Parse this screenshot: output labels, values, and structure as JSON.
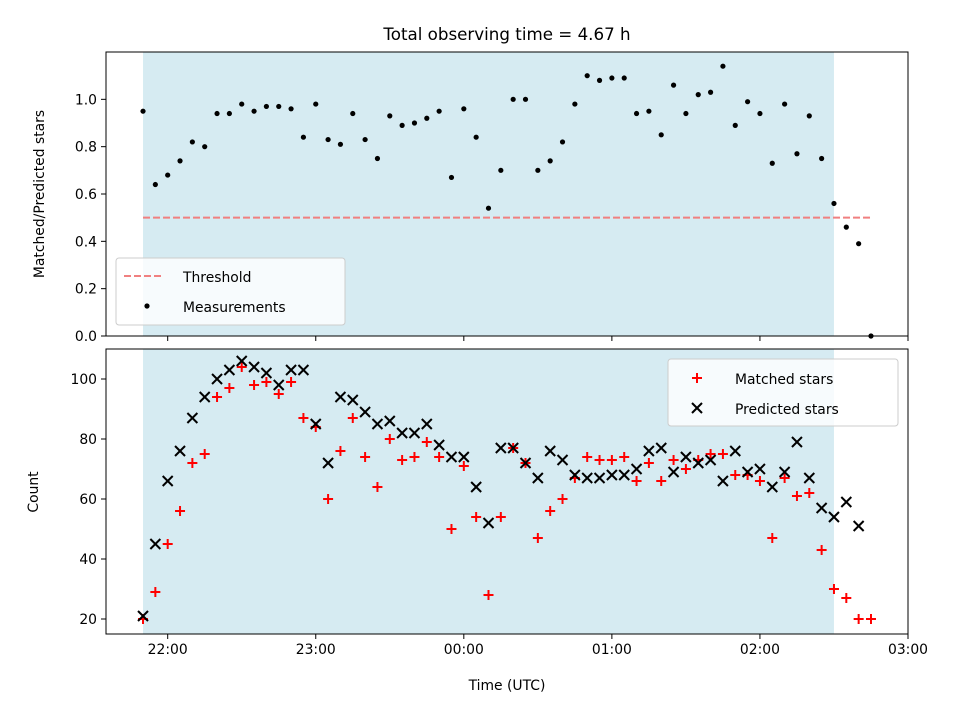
{
  "colors": {
    "span": "#add8e6",
    "threshold": "#f08080",
    "measurement": "#000000",
    "matched": "#ff0000",
    "predicted": "#000000"
  },
  "chart_data": [
    {
      "type": "scatter",
      "title": "Total observing time = 4.67 h",
      "xlabel": "",
      "ylabel": "Matched/Predicted stars",
      "xlim": [
        "21:35",
        "03:00"
      ],
      "ylim": [
        0,
        1.2
      ],
      "xticks": [
        "22:00",
        "23:00",
        "00:00",
        "01:00",
        "02:00",
        "03:00"
      ],
      "xtick_labels_shown": false,
      "yticks": [
        "0.0",
        "0.2",
        "0.4",
        "0.6",
        "0.8",
        "1.0"
      ],
      "shaded_span": [
        "21:50",
        "02:30"
      ],
      "threshold": {
        "name": "Threshold",
        "value": 0.5,
        "x": [
          "21:50",
          "02:45"
        ],
        "style": "dashed"
      },
      "legend": {
        "location": "lower-left",
        "entries": [
          "Threshold",
          "Measurements"
        ]
      },
      "series": [
        {
          "name": "Measurements",
          "marker": "dot",
          "points": [
            [
              "21:50",
              0.95
            ],
            [
              "21:55",
              0.64
            ],
            [
              "22:00",
              0.68
            ],
            [
              "22:05",
              0.74
            ],
            [
              "22:10",
              0.82
            ],
            [
              "22:15",
              0.8
            ],
            [
              "22:20",
              0.94
            ],
            [
              "22:25",
              0.94
            ],
            [
              "22:30",
              0.98
            ],
            [
              "22:35",
              0.95
            ],
            [
              "22:40",
              0.97
            ],
            [
              "22:45",
              0.97
            ],
            [
              "22:50",
              0.96
            ],
            [
              "22:55",
              0.84
            ],
            [
              "23:00",
              0.98
            ],
            [
              "23:05",
              0.83
            ],
            [
              "23:10",
              0.81
            ],
            [
              "23:15",
              0.94
            ],
            [
              "23:20",
              0.83
            ],
            [
              "23:25",
              0.75
            ],
            [
              "23:30",
              0.93
            ],
            [
              "23:35",
              0.89
            ],
            [
              "23:40",
              0.9
            ],
            [
              "23:45",
              0.92
            ],
            [
              "23:50",
              0.95
            ],
            [
              "23:55",
              0.67
            ],
            [
              "00:00",
              0.96
            ],
            [
              "00:05",
              0.84
            ],
            [
              "00:10",
              0.54
            ],
            [
              "00:15",
              0.7
            ],
            [
              "00:20",
              1.0
            ],
            [
              "00:25",
              1.0
            ],
            [
              "00:30",
              0.7
            ],
            [
              "00:35",
              0.74
            ],
            [
              "00:40",
              0.82
            ],
            [
              "00:45",
              0.98
            ],
            [
              "00:50",
              1.1
            ],
            [
              "00:55",
              1.08
            ],
            [
              "01:00",
              1.09
            ],
            [
              "01:05",
              1.09
            ],
            [
              "01:10",
              0.94
            ],
            [
              "01:15",
              0.95
            ],
            [
              "01:20",
              0.85
            ],
            [
              "01:25",
              1.06
            ],
            [
              "01:30",
              0.94
            ],
            [
              "01:35",
              1.02
            ],
            [
              "01:40",
              1.03
            ],
            [
              "01:45",
              1.14
            ],
            [
              "01:50",
              0.89
            ],
            [
              "01:55",
              0.99
            ],
            [
              "02:00",
              0.94
            ],
            [
              "02:05",
              0.73
            ],
            [
              "02:10",
              0.98
            ],
            [
              "02:15",
              0.77
            ],
            [
              "02:20",
              0.93
            ],
            [
              "02:25",
              0.75
            ],
            [
              "02:30",
              0.56
            ],
            [
              "02:35",
              0.46
            ],
            [
              "02:40",
              0.39
            ],
            [
              "02:45",
              0.0
            ]
          ]
        }
      ]
    },
    {
      "type": "scatter",
      "title": "",
      "xlabel": "Time (UTC)",
      "ylabel": "Count",
      "xlim": [
        "21:35",
        "03:00"
      ],
      "ylim": [
        15,
        110
      ],
      "xticks": [
        "22:00",
        "23:00",
        "00:00",
        "01:00",
        "02:00",
        "03:00"
      ],
      "yticks": [
        "20",
        "40",
        "60",
        "80",
        "100"
      ],
      "shaded_span": [
        "21:50",
        "02:30"
      ],
      "legend": {
        "location": "top-right",
        "entries": [
          "Matched stars",
          "Predicted stars"
        ]
      },
      "series": [
        {
          "name": "Matched stars",
          "marker": "plus",
          "points": [
            [
              "21:50",
              20
            ],
            [
              "21:55",
              29
            ],
            [
              "22:00",
              45
            ],
            [
              "22:05",
              56
            ],
            [
              "22:10",
              72
            ],
            [
              "22:15",
              75
            ],
            [
              "22:20",
              94
            ],
            [
              "22:25",
              97
            ],
            [
              "22:30",
              104
            ],
            [
              "22:35",
              98
            ],
            [
              "22:40",
              99
            ],
            [
              "22:45",
              95
            ],
            [
              "22:50",
              99
            ],
            [
              "22:55",
              87
            ],
            [
              "23:00",
              84
            ],
            [
              "23:05",
              60
            ],
            [
              "23:10",
              76
            ],
            [
              "23:15",
              87
            ],
            [
              "23:20",
              74
            ],
            [
              "23:25",
              64
            ],
            [
              "23:30",
              80
            ],
            [
              "23:35",
              73
            ],
            [
              "23:40",
              74
            ],
            [
              "23:45",
              79
            ],
            [
              "23:50",
              74
            ],
            [
              "23:55",
              50
            ],
            [
              "00:00",
              71
            ],
            [
              "00:05",
              54
            ],
            [
              "00:10",
              28
            ],
            [
              "00:15",
              54
            ],
            [
              "00:20",
              77
            ],
            [
              "00:25",
              72
            ],
            [
              "00:30",
              47
            ],
            [
              "00:35",
              56
            ],
            [
              "00:40",
              60
            ],
            [
              "00:45",
              67
            ],
            [
              "00:50",
              74
            ],
            [
              "00:55",
              73
            ],
            [
              "01:00",
              73
            ],
            [
              "01:05",
              74
            ],
            [
              "01:10",
              66
            ],
            [
              "01:15",
              72
            ],
            [
              "01:20",
              66
            ],
            [
              "01:25",
              73
            ],
            [
              "01:30",
              70
            ],
            [
              "01:35",
              73
            ],
            [
              "01:40",
              75
            ],
            [
              "01:45",
              75
            ],
            [
              "01:50",
              68
            ],
            [
              "01:55",
              68
            ],
            [
              "02:00",
              66
            ],
            [
              "02:05",
              47
            ],
            [
              "02:10",
              67
            ],
            [
              "02:15",
              61
            ],
            [
              "02:20",
              62
            ],
            [
              "02:25",
              43
            ],
            [
              "02:30",
              30
            ],
            [
              "02:35",
              27
            ],
            [
              "02:40",
              20
            ],
            [
              "02:45",
              20
            ]
          ]
        },
        {
          "name": "Predicted stars",
          "marker": "x",
          "points": [
            [
              "21:50",
              21
            ],
            [
              "21:55",
              45
            ],
            [
              "22:00",
              66
            ],
            [
              "22:05",
              76
            ],
            [
              "22:10",
              87
            ],
            [
              "22:15",
              94
            ],
            [
              "22:20",
              100
            ],
            [
              "22:25",
              103
            ],
            [
              "22:30",
              106
            ],
            [
              "22:35",
              104
            ],
            [
              "22:40",
              102
            ],
            [
              "22:45",
              98
            ],
            [
              "22:50",
              103
            ],
            [
              "22:55",
              103
            ],
            [
              "23:00",
              85
            ],
            [
              "23:05",
              72
            ],
            [
              "23:10",
              94
            ],
            [
              "23:15",
              93
            ],
            [
              "23:20",
              89
            ],
            [
              "23:25",
              85
            ],
            [
              "23:30",
              86
            ],
            [
              "23:35",
              82
            ],
            [
              "23:40",
              82
            ],
            [
              "23:45",
              85
            ],
            [
              "23:50",
              78
            ],
            [
              "23:55",
              74
            ],
            [
              "00:00",
              74
            ],
            [
              "00:05",
              64
            ],
            [
              "00:10",
              52
            ],
            [
              "00:15",
              77
            ],
            [
              "00:20",
              77
            ],
            [
              "00:25",
              72
            ],
            [
              "00:30",
              67
            ],
            [
              "00:35",
              76
            ],
            [
              "00:40",
              73
            ],
            [
              "00:45",
              68
            ],
            [
              "00:50",
              67
            ],
            [
              "00:55",
              67
            ],
            [
              "01:00",
              68
            ],
            [
              "01:05",
              68
            ],
            [
              "01:10",
              70
            ],
            [
              "01:15",
              76
            ],
            [
              "01:20",
              77
            ],
            [
              "01:25",
              69
            ],
            [
              "01:30",
              74
            ],
            [
              "01:35",
              72
            ],
            [
              "01:40",
              73
            ],
            [
              "01:45",
              66
            ],
            [
              "01:50",
              76
            ],
            [
              "01:55",
              69
            ],
            [
              "02:00",
              70
            ],
            [
              "02:05",
              64
            ],
            [
              "02:10",
              69
            ],
            [
              "02:15",
              79
            ],
            [
              "02:20",
              67
            ],
            [
              "02:25",
              57
            ],
            [
              "02:30",
              54
            ],
            [
              "02:35",
              59
            ],
            [
              "02:40",
              51
            ]
          ]
        }
      ]
    }
  ]
}
